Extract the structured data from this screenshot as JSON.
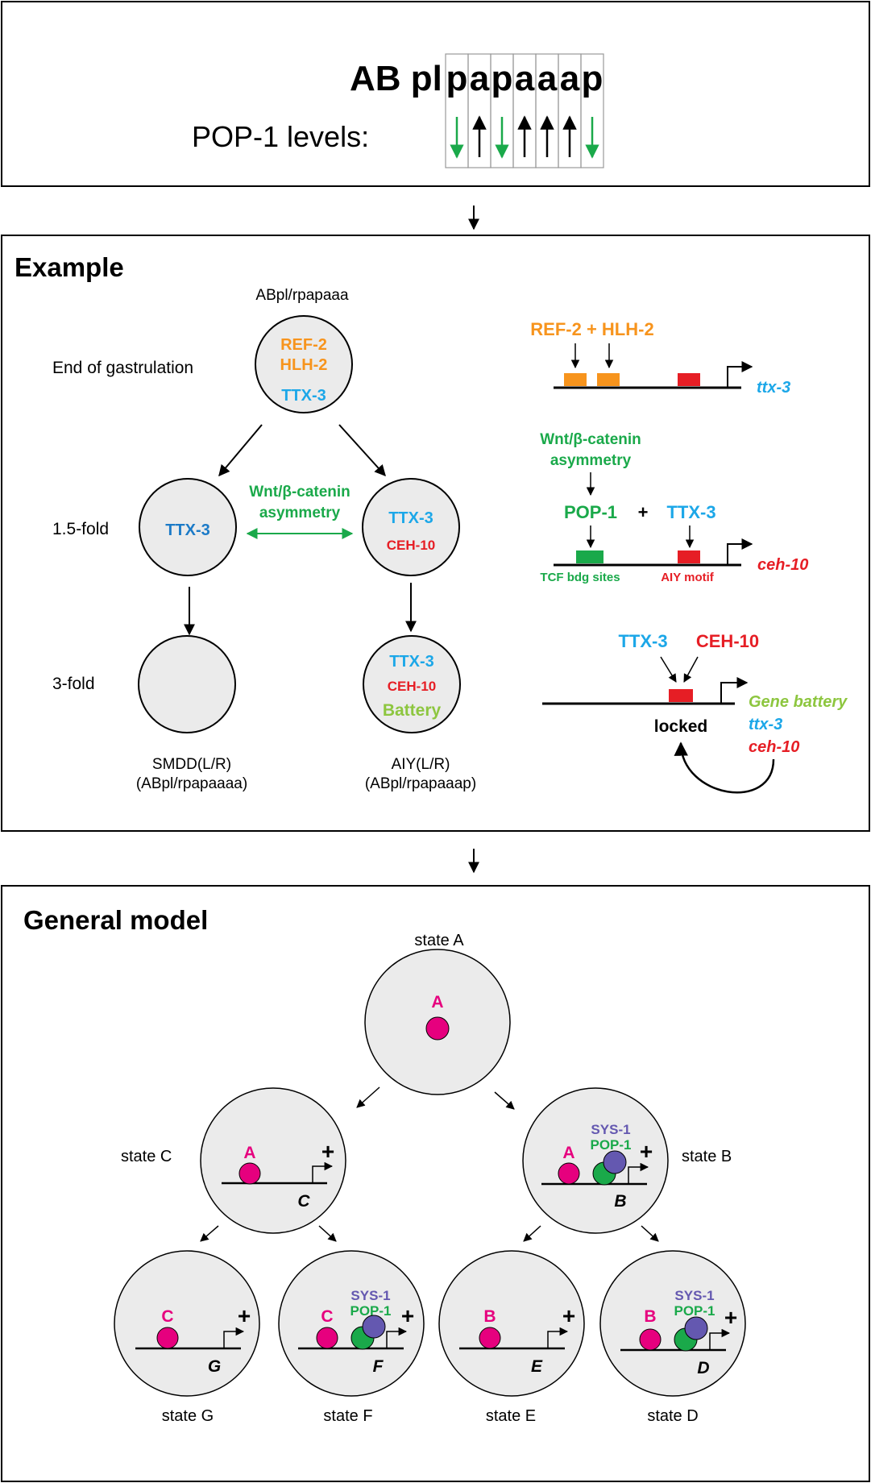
{
  "colors": {
    "orange": "#f7941d",
    "cyan": "#1ca7e8",
    "blue": "#1b7ac7",
    "red": "#e61e25",
    "green": "#1aa94a",
    "lime": "#8dc63f",
    "magenta": "#e6007e",
    "purple": "#6458b0",
    "cell_fill": "#ebebeb"
  },
  "top": {
    "title_prefix": "AB pl",
    "title_letters": [
      "p",
      "a",
      "p",
      "a",
      "a",
      "a",
      "p"
    ],
    "pop1_label": "POP-1 levels:",
    "pop1_arrows": [
      "down",
      "up",
      "down",
      "up",
      "up",
      "up",
      "down"
    ]
  },
  "example": {
    "heading": "Example",
    "lineage": "ABpl/rpapaaa",
    "stages": {
      "end": "End of gastrulation",
      "fold15": "1.5-fold",
      "fold3": "3-fold"
    },
    "top_cell": {
      "ref2": "REF-2",
      "hlh2": "HLH-2",
      "ttx3": "TTX-3"
    },
    "left_cell": {
      "ttx3": "TTX-3"
    },
    "right_cell": {
      "ttx3": "TTX-3",
      "ceh10": "CEH-10"
    },
    "wnt": {
      "line1": "Wnt/β-catenin",
      "line2": "asymmetry"
    },
    "aiy_cell": {
      "ttx3": "TTX-3",
      "ceh10": "CEH-10",
      "battery": "Battery"
    },
    "smdd": {
      "name": "SMDD(L/R)",
      "lineage": "(ABpl/rpapaaaa)"
    },
    "aiy": {
      "name": "AIY(L/R)",
      "lineage": "(ABpl/rpapaaap)"
    },
    "gene1": {
      "factors": "REF-2 + HLH-2",
      "gene": "ttx-3"
    },
    "gene2": {
      "wnt1": "Wnt/β-catenin",
      "wnt2": "asymmetry",
      "pop1": "POP-1",
      "plus": "+",
      "ttx3": "TTX-3",
      "tcf": "TCF bdg sites",
      "aiy_motif": "AIY motif",
      "gene": "ceh-10"
    },
    "gene3": {
      "ttx3": "TTX-3",
      "ceh10": "CEH-10",
      "locked": "locked",
      "battery": "Gene battery",
      "ttx3_gene": "ttx-3",
      "ceh10_gene": "ceh-10"
    }
  },
  "general": {
    "heading": "General model",
    "state_labels": {
      "A": "state A",
      "B": "state B",
      "C": "state C",
      "D": "state D",
      "E": "state E",
      "F": "state F",
      "G": "state G"
    },
    "factor_A": "A",
    "factor_B": "B",
    "factor_C": "C",
    "sys1": "SYS-1",
    "pop1": "POP-1",
    "plus": "+",
    "genes": {
      "B": "B",
      "C": "C",
      "D": "D",
      "E": "E",
      "F": "F",
      "G": "G"
    }
  }
}
